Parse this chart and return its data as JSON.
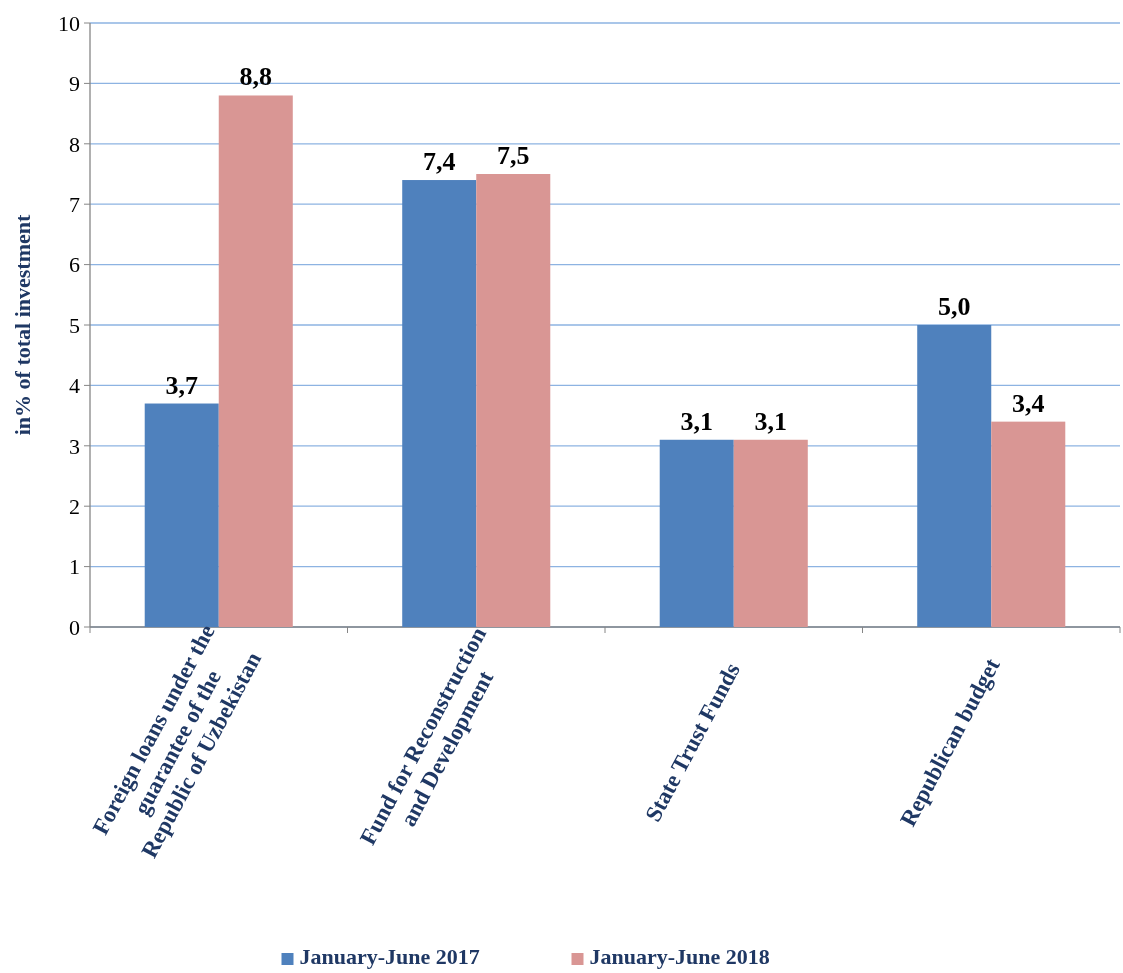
{
  "chart_data": {
    "type": "bar",
    "ylabel": "in% of total investment",
    "categories": [
      "Foreign loans under the guarantee of the Republic of Uzbekistan",
      "Fund for Reconstruction and Development",
      "State Trust Funds",
      "Republican budget"
    ],
    "series": [
      {
        "name": "January-June 2017",
        "color": "#4f81bd",
        "values": [
          3.7,
          7.4,
          3.1,
          5.0
        ],
        "value_labels": [
          "3,7",
          "7,4",
          "3,1",
          "5,0"
        ]
      },
      {
        "name": "January-June 2018",
        "color": "#d99694",
        "values": [
          8.8,
          7.5,
          3.1,
          3.4
        ],
        "value_labels": [
          "8,8",
          "7,5",
          "3,1",
          "3,4"
        ]
      }
    ],
    "ylim": [
      0,
      10
    ],
    "yticks": [
      0,
      1,
      2,
      3,
      4,
      5,
      6,
      7,
      8,
      9,
      10
    ],
    "grid": "y",
    "legend": "bottom"
  }
}
